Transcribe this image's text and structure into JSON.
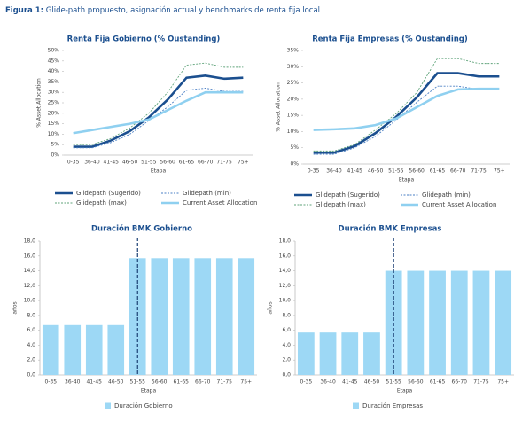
{
  "figure_label": "Figura 1:",
  "figure_caption": "Glide-path propuesto, asignación actual  y benchmarks de renta fija local",
  "chart_data": [
    {
      "type": "line",
      "title": "Renta Fija Gobierno (% Oustanding)",
      "x_label": "Etapa",
      "y_label": "% Asset Allocation",
      "categories": [
        "0-35",
        "36-40",
        "41-45",
        "46-50",
        "51-55",
        "56-60",
        "61-65",
        "66-70",
        "71-75",
        "75+"
      ],
      "ylim": [
        0,
        50
      ],
      "yticks": [
        {
          "value": 0,
          "label": "0%"
        },
        {
          "value": 5,
          "label": "5%"
        },
        {
          "value": 10,
          "label": "10%"
        },
        {
          "value": 15,
          "label": "15%"
        },
        {
          "value": 20,
          "label": "20%"
        },
        {
          "value": 25,
          "label": "25%"
        },
        {
          "value": 30,
          "label": "30%"
        },
        {
          "value": 35,
          "label": "35%"
        },
        {
          "value": 40,
          "label": "40%"
        },
        {
          "value": 45,
          "label": "45%"
        },
        {
          "value": 50,
          "label": "50%"
        }
      ],
      "series": [
        {
          "name": "Glidepath (Sugerido)",
          "color": "#1b4f8f",
          "line_style": "solid",
          "values": [
            4,
            4,
            7,
            11.5,
            18,
            26.5,
            37,
            38,
            36.5,
            37
          ]
        },
        {
          "name": "Glidepath (min)",
          "color": "#4a7fc4",
          "line_style": "dotted",
          "values": [
            3.5,
            3.5,
            6,
            10,
            16.5,
            23,
            31,
            32,
            30.5,
            30.5
          ]
        },
        {
          "name": "Glidepath (max)",
          "color": "#5fa37a",
          "line_style": "dotted",
          "values": [
            5,
            5,
            8,
            13,
            20,
            30,
            43,
            44,
            42,
            42
          ]
        },
        {
          "name": "Current Asset Allocation",
          "color": "#8fd0f0",
          "line_style": "solid",
          "values": [
            10.5,
            12,
            13.5,
            15,
            17,
            21.5,
            26,
            30,
            30,
            30
          ]
        }
      ]
    },
    {
      "type": "line",
      "title": "Renta Fija Empresas (% Oustanding)",
      "x_label": "Etapa",
      "y_label": "% Asset Allocation",
      "categories": [
        "0-35",
        "36-40",
        "41-45",
        "46-50",
        "51-55",
        "56-60",
        "61-65",
        "66-70",
        "71-75",
        "75+"
      ],
      "ylim": [
        0,
        35
      ],
      "yticks": [
        {
          "value": 0,
          "label": "0%"
        },
        {
          "value": 5,
          "label": "5%"
        },
        {
          "value": 10,
          "label": "10%"
        },
        {
          "value": 15,
          "label": "15%"
        },
        {
          "value": 20,
          "label": "20%"
        },
        {
          "value": 25,
          "label": "25%"
        },
        {
          "value": 30,
          "label": "30%"
        },
        {
          "value": 35,
          "label": "35%"
        }
      ],
      "series": [
        {
          "name": "Glidepath (Sugerido)",
          "color": "#1b4f8f",
          "line_style": "solid",
          "values": [
            3.5,
            3.5,
            5.5,
            9.5,
            14.5,
            20.5,
            28,
            28,
            27,
            27
          ]
        },
        {
          "name": "Glidepath (min)",
          "color": "#4a7fc4",
          "line_style": "dotted",
          "values": [
            3,
            3,
            5,
            8.5,
            13.5,
            19,
            24,
            24,
            23,
            23
          ]
        },
        {
          "name": "Glidepath (max)",
          "color": "#5fa37a",
          "line_style": "dotted",
          "values": [
            4,
            4,
            6,
            10.5,
            15.5,
            22,
            32.5,
            32.5,
            31,
            31
          ]
        },
        {
          "name": "Current Asset Allocation",
          "color": "#8fd0f0",
          "line_style": "solid",
          "values": [
            10.5,
            10.7,
            11,
            12,
            14,
            17.5,
            21,
            23,
            23.2,
            23.2
          ]
        }
      ]
    },
    {
      "type": "bar",
      "title": "Duración BMK Gobierno",
      "x_label": "Etapa",
      "y_label": "años",
      "categories": [
        "0-35",
        "36-40",
        "41-45",
        "46-50",
        "51-55",
        "56-60",
        "61-65",
        "66-70",
        "71-75",
        "75+"
      ],
      "ylim": [
        0,
        18
      ],
      "yticks": [
        {
          "value": 0,
          "label": "0,0"
        },
        {
          "value": 2,
          "label": "2,0"
        },
        {
          "value": 4,
          "label": "4,0"
        },
        {
          "value": 6,
          "label": "6,0"
        },
        {
          "value": 8,
          "label": "8,0"
        },
        {
          "value": 10,
          "label": "10,0"
        },
        {
          "value": 12,
          "label": "12,0"
        },
        {
          "value": 14,
          "label": "14,0"
        },
        {
          "value": 16,
          "label": "16,0"
        },
        {
          "value": 18,
          "label": "18,0"
        }
      ],
      "reference_category": "51-55",
      "series": [
        {
          "name": "Duración Gobierno",
          "color": "#9dd8f5",
          "values": [
            6.7,
            6.7,
            6.7,
            6.7,
            15.7,
            15.7,
            15.7,
            15.7,
            15.7,
            15.7
          ]
        }
      ]
    },
    {
      "type": "bar",
      "title": "Duración BMK Empresas",
      "x_label": "Etapa",
      "y_label": "años",
      "categories": [
        "0-35",
        "36-40",
        "41-45",
        "46-50",
        "51-55",
        "56-60",
        "61-65",
        "66-70",
        "71-75",
        "75+"
      ],
      "ylim": [
        0,
        18
      ],
      "yticks": [
        {
          "value": 0,
          "label": "0,0"
        },
        {
          "value": 2,
          "label": "2,0"
        },
        {
          "value": 4,
          "label": "4,0"
        },
        {
          "value": 6,
          "label": "6,0"
        },
        {
          "value": 8,
          "label": "8,0"
        },
        {
          "value": 10,
          "label": "10,0"
        },
        {
          "value": 12,
          "label": "12,0"
        },
        {
          "value": 14,
          "label": "14,0"
        },
        {
          "value": 16,
          "label": "16,0"
        },
        {
          "value": 18,
          "label": "18,0"
        }
      ],
      "reference_category": "51-55",
      "series": [
        {
          "name": "Duración Empresas",
          "color": "#9dd8f5",
          "values": [
            5.7,
            5.7,
            5.7,
            5.7,
            14,
            14,
            14,
            14,
            14,
            14
          ]
        }
      ]
    }
  ]
}
